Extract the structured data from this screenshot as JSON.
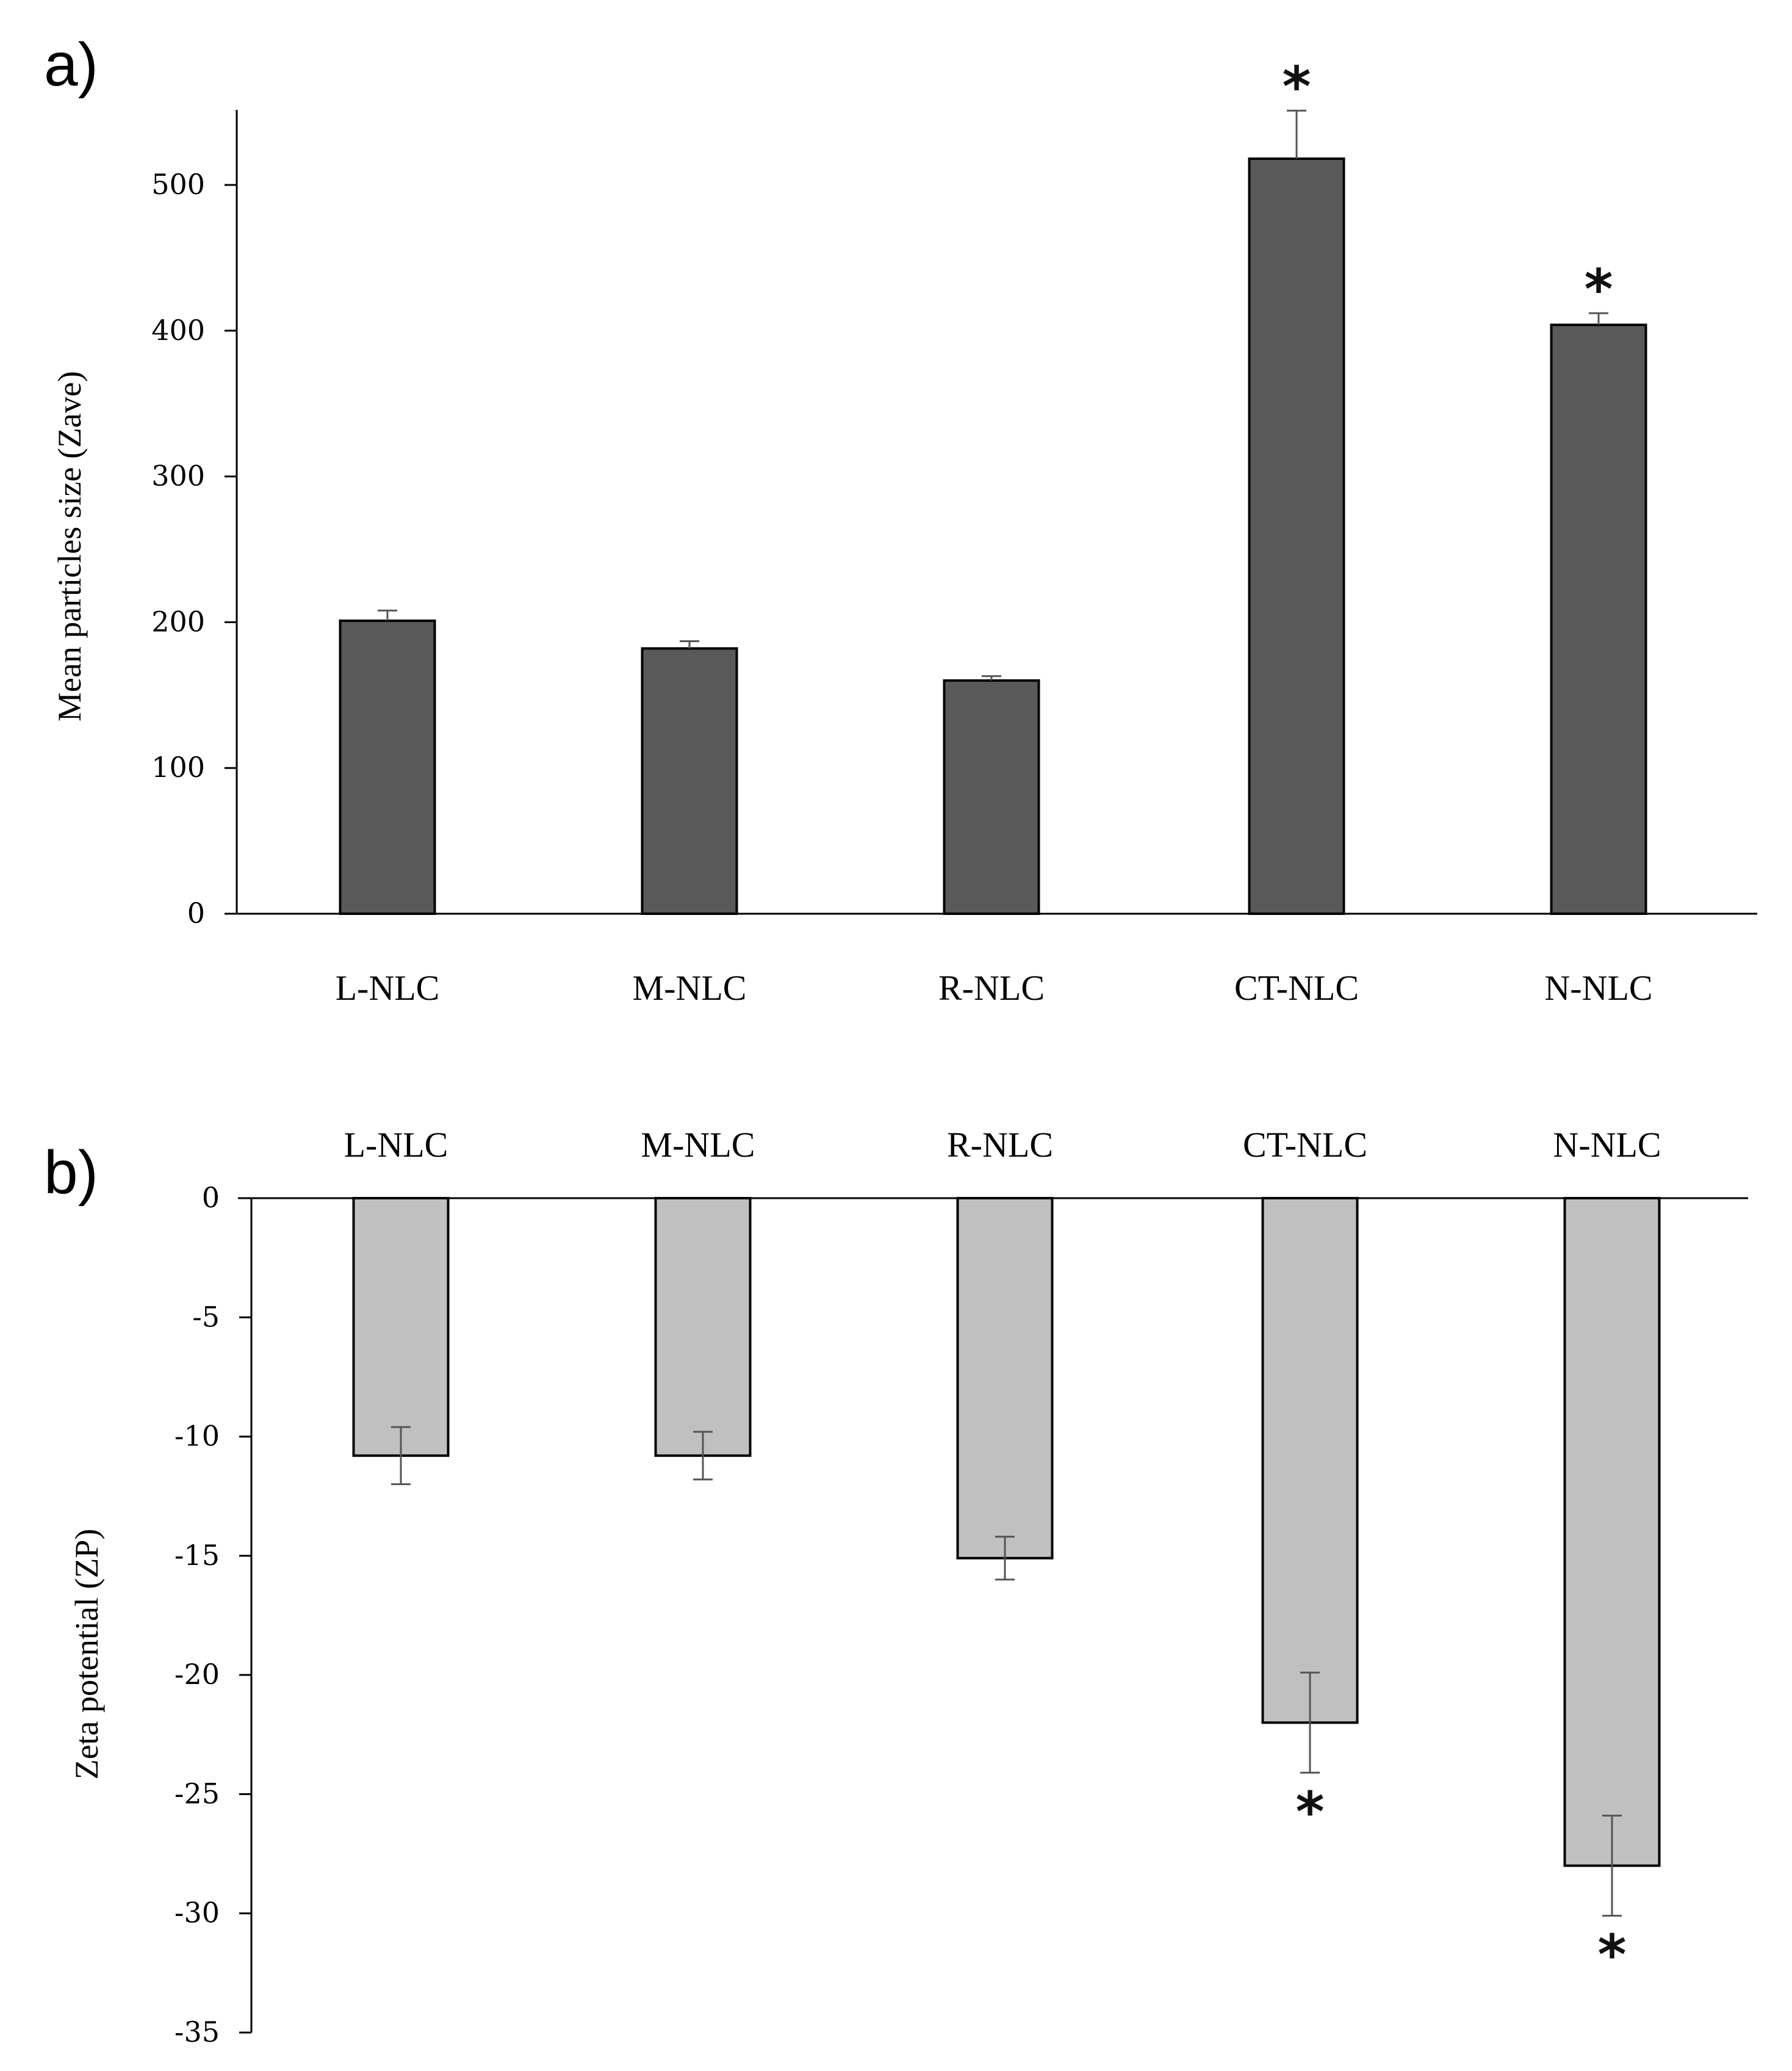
{
  "chart_data": [
    {
      "panel_label": "a)",
      "type": "bar",
      "title": "",
      "xlabel": "",
      "ylabel": "Mean particles size (Zave)",
      "categories": [
        "L-NLC",
        "M-NLC",
        "R-NLC",
        "CT-NLC",
        "N-NLC"
      ],
      "values": [
        201,
        182,
        160,
        518,
        404
      ],
      "errors": [
        7,
        5,
        3,
        33,
        8
      ],
      "significance": [
        "",
        "",
        "",
        "*",
        "*"
      ],
      "ylim": [
        0,
        550
      ],
      "yticks": [
        0,
        100,
        200,
        300,
        400,
        500
      ],
      "ytick_labels": [
        "0",
        "100",
        "200",
        "300",
        "400",
        "500"
      ],
      "bar_color": "#595959",
      "grid": false
    },
    {
      "panel_label": "b)",
      "type": "bar",
      "title": "",
      "xlabel": "",
      "ylabel": "Zeta potential (ZP)",
      "categories": [
        "L-NLC",
        "M-NLC",
        "R-NLC",
        "CT-NLC",
        "N-NLC"
      ],
      "values": [
        -10.8,
        -10.8,
        -15.1,
        -22.0,
        -28.0
      ],
      "errors": [
        1.2,
        1.0,
        0.9,
        2.1,
        2.1
      ],
      "significance": [
        "",
        "",
        "",
        "*",
        "*"
      ],
      "ylim": [
        -35,
        0
      ],
      "yticks": [
        0,
        -5,
        -10,
        -15,
        -20,
        -25,
        -30,
        -35
      ],
      "ytick_labels": [
        "0",
        "-5",
        "-10",
        "-15",
        "-20",
        "-25",
        "-30",
        "-35"
      ],
      "bar_color": "#c0c0c0",
      "grid": false
    }
  ]
}
